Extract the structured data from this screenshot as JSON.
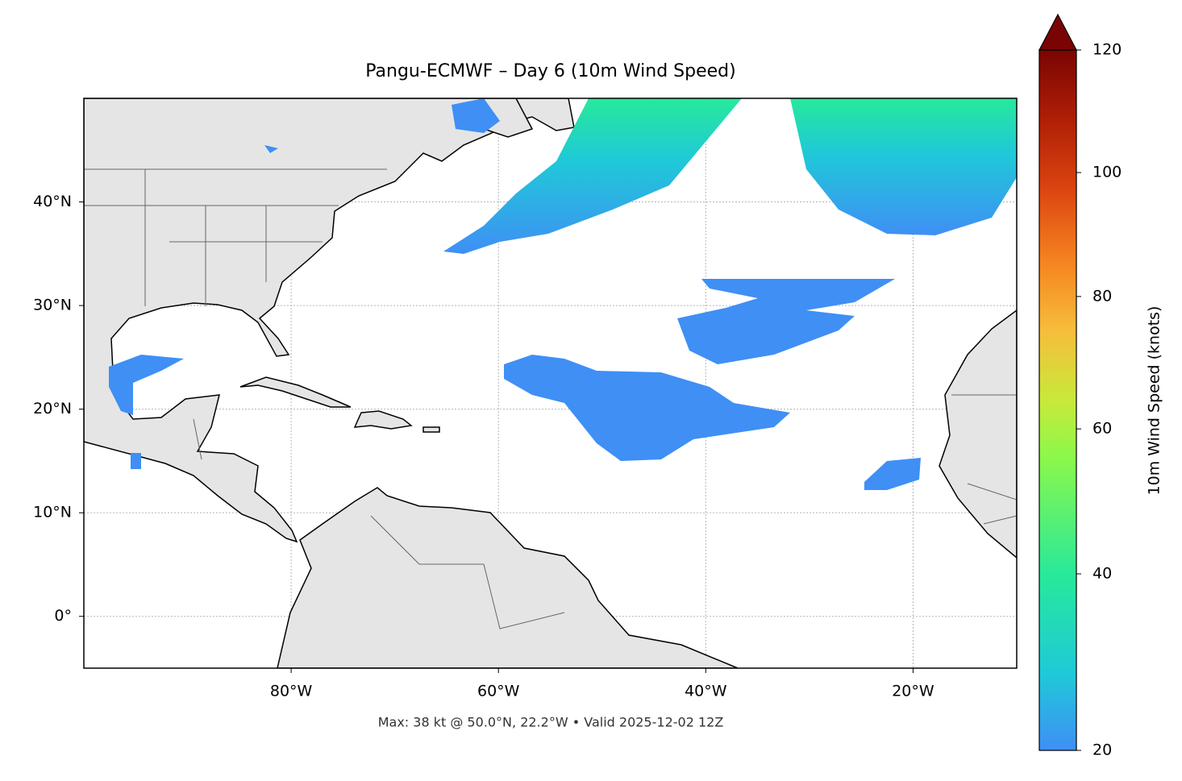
{
  "map": {
    "title": "Pangu-ECMWF – Day 6 (10m Wind Speed)",
    "footer": "Max: 38 kt @ 50.0°N, 22.2°W • Valid 2025-12-02 12Z",
    "lonlim": [
      -100,
      -10
    ],
    "latlim": [
      -5,
      50
    ],
    "grid": true,
    "lon_ticks": [
      {
        "value": -80,
        "label": "80°W"
      },
      {
        "value": -60,
        "label": "60°W"
      },
      {
        "value": -40,
        "label": "40°W"
      },
      {
        "value": -20,
        "label": "20°W"
      }
    ],
    "lat_ticks": [
      {
        "value": 40,
        "label": "40°N"
      },
      {
        "value": 30,
        "label": "30°N"
      },
      {
        "value": 20,
        "label": "20°N"
      },
      {
        "value": 10,
        "label": "10°N"
      },
      {
        "value": 0,
        "label": "0°"
      }
    ]
  },
  "colorbar": {
    "label": "10m Wind Speed (knots)",
    "lim": [
      20,
      120
    ],
    "ticks": [
      20,
      40,
      60,
      80,
      100,
      120
    ],
    "extend": "max"
  }
}
